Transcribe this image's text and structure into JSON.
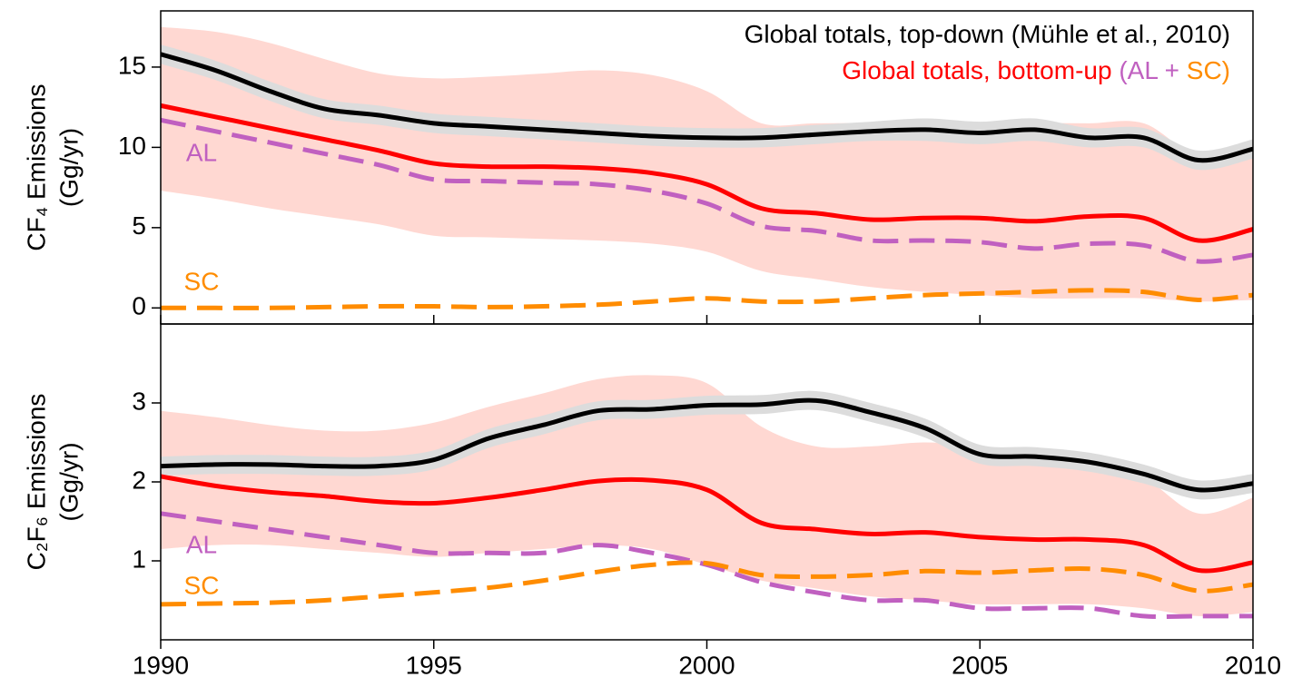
{
  "chart_data": [
    {
      "type": "line",
      "ylabel": [
        "CF₄ Emissions",
        "(Gg/yr)"
      ],
      "annotations": [
        {
          "text": "Global totals, top-down (Mühle et al., 2010)",
          "color": "#000000"
        },
        {
          "text": "Global totals, bottom-up ",
          "color": "#ff0000"
        },
        {
          "text": "(AL + ",
          "color": "#c060c0"
        },
        {
          "text": "SC)",
          "color": "#ff8c00"
        }
      ],
      "x": [
        1990,
        1991,
        1992,
        1993,
        1994,
        1995,
        1996,
        1997,
        1998,
        1999,
        2000,
        2001,
        2002,
        2003,
        2004,
        2005,
        2006,
        2007,
        2008,
        2009,
        2010
      ],
      "xlim": [
        1990,
        2010
      ],
      "xticks": [
        1990,
        1995,
        2000,
        2005,
        2010
      ],
      "ylim": [
        -1,
        18.5
      ],
      "yticks": [
        0,
        5,
        10,
        15
      ],
      "series": [
        {
          "color": "#ff0000",
          "band_color": "#ffd8d2",
          "values": [
            12.6,
            11.9,
            11.2,
            10.5,
            9.8,
            9.0,
            8.8,
            8.8,
            8.7,
            8.4,
            7.7,
            6.2,
            5.9,
            5.5,
            5.6,
            5.6,
            5.4,
            5.7,
            5.6,
            4.2,
            4.9
          ],
          "upper": [
            17.5,
            17.2,
            16.5,
            15.5,
            14.6,
            14.3,
            14.4,
            14.6,
            14.8,
            14.5,
            13.5,
            11.5,
            11.5,
            11.5,
            11.3,
            11.3,
            11.5,
            11.5,
            11.5,
            9.5,
            10.5
          ],
          "lower": [
            7.3,
            6.8,
            6.2,
            5.7,
            5.2,
            4.5,
            4.4,
            4.3,
            4.2,
            4.0,
            3.5,
            2.3,
            1.8,
            1.3,
            1.0,
            0.8,
            0.6,
            0.6,
            0.6,
            0.4,
            0.5
          ]
        },
        {
          "color": "#000000",
          "band_color": "#dcdcdc",
          "values": [
            15.8,
            14.8,
            13.5,
            12.4,
            12.0,
            11.5,
            11.3,
            11.1,
            10.9,
            10.7,
            10.6,
            10.6,
            10.8,
            11.0,
            11.1,
            10.9,
            11.1,
            10.6,
            10.6,
            9.2,
            9.9
          ],
          "upper": [
            16.4,
            15.4,
            14.1,
            13.0,
            12.6,
            12.1,
            11.9,
            11.7,
            11.5,
            11.3,
            11.2,
            11.2,
            11.4,
            11.6,
            11.8,
            11.6,
            11.8,
            11.2,
            11.2,
            9.8,
            10.5
          ],
          "lower": [
            15.2,
            14.2,
            12.9,
            11.8,
            11.4,
            10.9,
            10.7,
            10.5,
            10.3,
            10.1,
            10.0,
            10.0,
            10.2,
            10.4,
            10.4,
            10.2,
            10.4,
            10.0,
            10.0,
            8.6,
            9.3
          ]
        },
        {
          "name": "AL",
          "color": "#c060c0",
          "dashed": true,
          "values": [
            11.7,
            11.0,
            10.3,
            9.6,
            8.9,
            8.0,
            7.9,
            7.8,
            7.7,
            7.3,
            6.5,
            5.1,
            4.8,
            4.2,
            4.2,
            4.1,
            3.7,
            4.0,
            3.9,
            2.9,
            3.3
          ]
        },
        {
          "name": "SC",
          "color": "#ff8c00",
          "dashed": true,
          "values": [
            0,
            0,
            0,
            0.05,
            0.1,
            0.1,
            0.05,
            0.1,
            0.2,
            0.4,
            0.6,
            0.4,
            0.4,
            0.6,
            0.8,
            0.9,
            1.0,
            1.1,
            1.0,
            0.5,
            0.8
          ]
        }
      ]
    },
    {
      "type": "line",
      "ylabel": [
        "C₂F₆ Emissions",
        "(Gg/yr)"
      ],
      "x": [
        1990,
        1991,
        1992,
        1993,
        1994,
        1995,
        1996,
        1997,
        1998,
        1999,
        2000,
        2001,
        2002,
        2003,
        2004,
        2005,
        2006,
        2007,
        2008,
        2009,
        2010
      ],
      "xlim": [
        1990,
        2010
      ],
      "xticks": [
        1990,
        1995,
        2000,
        2005,
        2010
      ],
      "ylim": [
        0,
        4
      ],
      "yticks": [
        1,
        2,
        3
      ],
      "series": [
        {
          "color": "#ff0000",
          "band_color": "#ffd8d2",
          "values": [
            2.07,
            1.95,
            1.87,
            1.82,
            1.75,
            1.73,
            1.8,
            1.9,
            2.01,
            2.02,
            1.9,
            1.48,
            1.4,
            1.34,
            1.36,
            1.3,
            1.27,
            1.27,
            1.2,
            0.88,
            0.98
          ],
          "upper": [
            2.9,
            2.82,
            2.72,
            2.65,
            2.65,
            2.75,
            2.95,
            3.12,
            3.3,
            3.35,
            3.25,
            2.7,
            2.45,
            2.45,
            2.5,
            2.45,
            2.35,
            2.25,
            2.05,
            1.6,
            1.8
          ],
          "lower": [
            1.15,
            1.2,
            1.2,
            1.15,
            1.1,
            1.05,
            1.1,
            1.15,
            1.2,
            1.15,
            0.95,
            0.75,
            0.65,
            0.55,
            0.5,
            0.45,
            0.45,
            0.45,
            0.4,
            0.3,
            0.35
          ]
        },
        {
          "color": "#000000",
          "band_color": "#dcdcdc",
          "values": [
            2.2,
            2.22,
            2.22,
            2.2,
            2.2,
            2.28,
            2.55,
            2.72,
            2.9,
            2.92,
            2.97,
            2.98,
            3.03,
            2.88,
            2.68,
            2.35,
            2.32,
            2.25,
            2.1,
            1.9,
            1.98
          ],
          "upper": [
            2.32,
            2.34,
            2.34,
            2.32,
            2.32,
            2.4,
            2.67,
            2.84,
            3.02,
            3.04,
            3.09,
            3.1,
            3.15,
            3.0,
            2.8,
            2.47,
            2.44,
            2.37,
            2.22,
            2.02,
            2.1
          ],
          "lower": [
            2.08,
            2.1,
            2.1,
            2.08,
            2.08,
            2.16,
            2.43,
            2.6,
            2.78,
            2.8,
            2.85,
            2.86,
            2.91,
            2.76,
            2.56,
            2.23,
            2.2,
            2.13,
            1.98,
            1.78,
            1.86
          ]
        },
        {
          "name": "AL",
          "color": "#c060c0",
          "dashed": true,
          "values": [
            1.6,
            1.5,
            1.4,
            1.3,
            1.2,
            1.1,
            1.1,
            1.1,
            1.2,
            1.1,
            0.95,
            0.73,
            0.6,
            0.5,
            0.5,
            0.4,
            0.4,
            0.4,
            0.3,
            0.3,
            0.3
          ]
        },
        {
          "name": "SC",
          "color": "#ff8c00",
          "dashed": true,
          "values": [
            0.45,
            0.46,
            0.47,
            0.5,
            0.55,
            0.6,
            0.66,
            0.75,
            0.86,
            0.95,
            0.97,
            0.82,
            0.8,
            0.82,
            0.87,
            0.85,
            0.88,
            0.9,
            0.82,
            0.62,
            0.7
          ]
        }
      ]
    }
  ]
}
